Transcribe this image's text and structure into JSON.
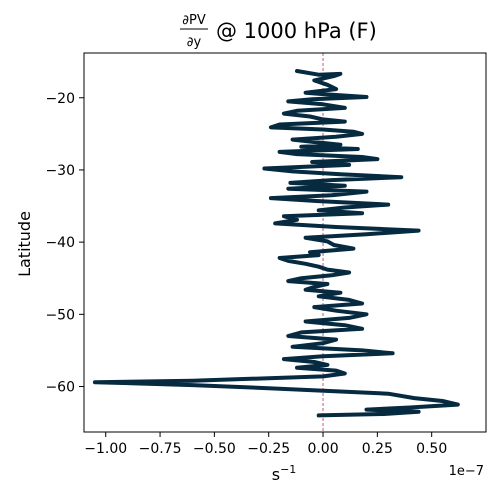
{
  "chart_data": {
    "type": "line",
    "title": {
      "fraction_numerator": "∂PV",
      "fraction_denominator": "∂y",
      "rest": "@ 1000 hPa (F)"
    },
    "xlabel": {
      "base": "s",
      "superscript": "−1"
    },
    "ylabel": "Latitude",
    "x_scale_note": "1e−7",
    "x_ticks": [
      -1.0,
      -0.75,
      -0.5,
      -0.25,
      0.0,
      0.25
    ],
    "x_tick_labels": [
      "−1.00",
      "−0.75",
      "−0.50",
      "−0.25",
      "0.00",
      "0.25"
    ],
    "x_tick_extra": [
      0.5
    ],
    "x_tick_extra_labels": [
      "0.50"
    ],
    "y_ticks": [
      -20,
      -30,
      -40,
      -50,
      -60
    ],
    "y_tick_labels": [
      "−20",
      "−30",
      "−40",
      "−50",
      "−60"
    ],
    "xlim": [
      -1.1,
      0.75
    ],
    "ylim": [
      -66.3,
      -13.8
    ],
    "grid": false,
    "zero_line": {
      "x": 0,
      "color": "#b03060",
      "style": "dashed"
    },
    "series_color": "#062a40",
    "series": [
      {
        "x": [
          -0.12,
          -0.02,
          0.08,
          0.05,
          -0.04,
          0.02,
          0.06,
          -0.08,
          0.0,
          0.2,
          -0.05,
          -0.16,
          0.0,
          0.1,
          -0.12,
          -0.18,
          -0.06,
          0.0,
          0.1,
          -0.2,
          -0.24,
          0.0,
          0.14,
          0.18,
          0.06,
          -0.14,
          -0.02,
          0.08,
          -0.1,
          0.16,
          -0.2,
          -0.12,
          0.18,
          0.25,
          -0.05,
          0.12,
          -0.27,
          -0.14,
          0.08,
          0.36,
          0.04,
          -0.15,
          0.1,
          -0.16,
          0.2,
          0.04,
          -0.24,
          -0.03,
          0.3,
          0.1,
          -0.02,
          0.18,
          -0.18,
          -0.12,
          -0.22,
          0.06,
          0.44,
          0.2,
          -0.08,
          0.02,
          0.05,
          0.14,
          -0.06,
          -0.02,
          -0.2,
          -0.16,
          -0.08,
          -0.02,
          0.02,
          0.12,
          0.04,
          -0.1,
          -0.16,
          0.02,
          -0.04,
          -0.08,
          0.08,
          -0.02,
          0.12,
          0.18,
          -0.04,
          0.06,
          0.2,
          0.12,
          -0.08,
          0.1,
          0.18,
          -0.1,
          -0.16,
          0.06,
          0.0,
          -0.14,
          0.18,
          0.32,
          0.0,
          -0.18,
          -0.04,
          0.02,
          -0.12,
          0.06,
          0.1,
          0.0,
          -0.4,
          -0.6,
          -1.05,
          -0.6,
          -0.2,
          0.3,
          0.42,
          0.55,
          0.62,
          0.4,
          0.2,
          0.44,
          0.28,
          -0.02
        ],
        "y": [
          -16.3,
          -16.8,
          -16.7,
          -17.0,
          -17.6,
          -18.2,
          -18.8,
          -19.3,
          -19.5,
          -19.9,
          -20.2,
          -20.5,
          -20.9,
          -21.4,
          -21.8,
          -22.2,
          -22.6,
          -23.0,
          -23.3,
          -23.7,
          -24.1,
          -24.4,
          -24.7,
          -25.0,
          -25.4,
          -25.8,
          -26.2,
          -26.5,
          -26.8,
          -27.1,
          -27.5,
          -27.8,
          -28.2,
          -28.5,
          -28.9,
          -29.3,
          -29.8,
          -30.2,
          -30.6,
          -31.0,
          -31.4,
          -31.8,
          -32.2,
          -32.6,
          -33.0,
          -33.5,
          -33.9,
          -34.3,
          -34.8,
          -35.2,
          -35.6,
          -36.0,
          -36.4,
          -36.9,
          -37.4,
          -37.9,
          -38.4,
          -38.9,
          -39.4,
          -39.9,
          -40.4,
          -40.9,
          -41.4,
          -41.8,
          -42.2,
          -42.6,
          -43.0,
          -43.4,
          -43.8,
          -44.2,
          -44.6,
          -45.0,
          -45.4,
          -45.8,
          -46.2,
          -46.6,
          -47.0,
          -47.5,
          -48.0,
          -48.5,
          -49.0,
          -49.5,
          -50.0,
          -50.5,
          -51.0,
          -51.5,
          -52.0,
          -52.5,
          -53.0,
          -53.5,
          -54.0,
          -54.5,
          -55.0,
          -55.4,
          -55.8,
          -56.2,
          -56.6,
          -57.0,
          -57.4,
          -57.8,
          -58.2,
          -58.6,
          -59.0,
          -59.2,
          -59.4,
          -59.8,
          -60.3,
          -61.0,
          -61.6,
          -62.0,
          -62.5,
          -62.9,
          -63.2,
          -63.5,
          -63.8,
          -64.0
        ]
      }
    ]
  }
}
